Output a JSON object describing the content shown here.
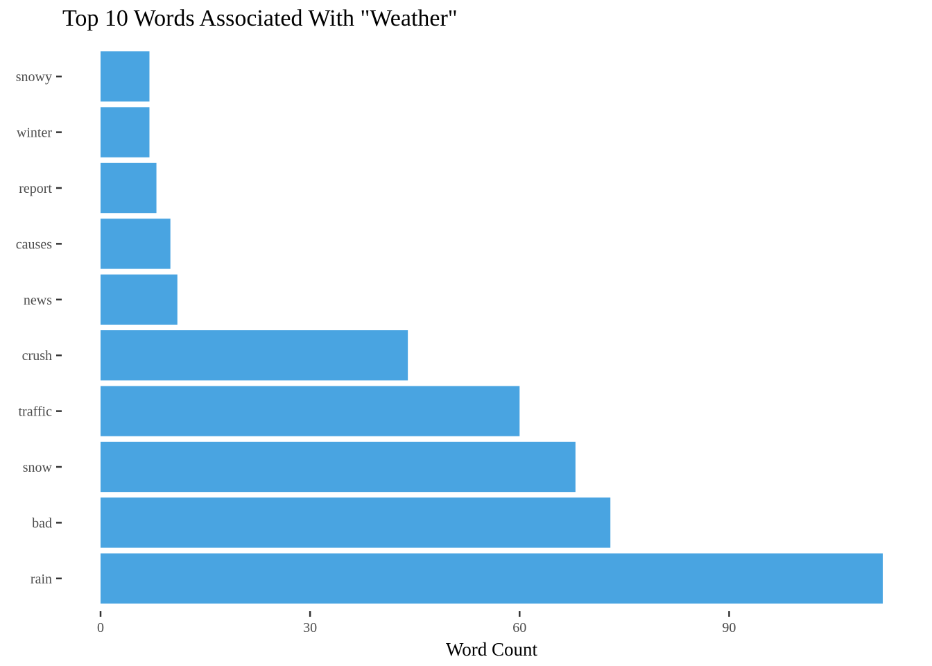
{
  "chart_data": {
    "type": "bar",
    "orientation": "horizontal",
    "title": "Top 10 Words Associated With \"Weather\"",
    "xlabel": "Word Count",
    "ylabel": "",
    "categories": [
      "snowy",
      "winter",
      "report",
      "causes",
      "news",
      "crush",
      "traffic",
      "snow",
      "bad",
      "rain"
    ],
    "values": [
      7,
      7,
      8,
      10,
      11,
      44,
      60,
      68,
      73,
      112
    ],
    "xlim": [
      0,
      112
    ],
    "x_ticks": [
      0,
      30,
      60,
      90
    ],
    "grid": false,
    "bar_color": "#49A4E1"
  }
}
